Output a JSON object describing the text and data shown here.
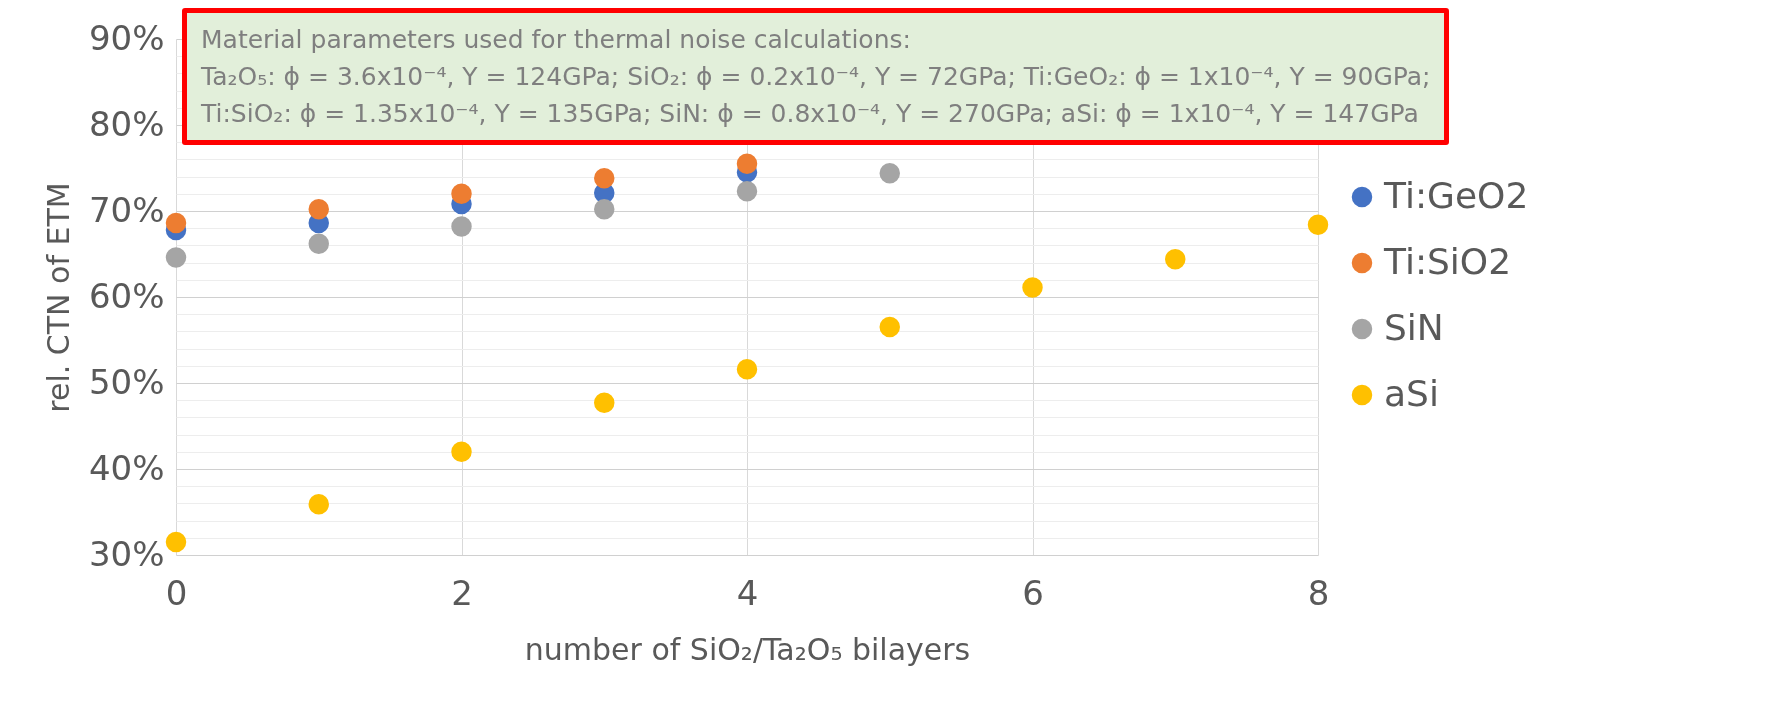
{
  "chart_data": {
    "type": "scatter",
    "xlabel": "number of SiO₂/Ta₂O₅ bilayers",
    "ylabel": "rel. CTN of ETM",
    "annotations": [
      "Material parameters used for thermal noise calculations:",
      "Ta₂O₅: ϕ = 3.6x10⁻⁴, Y = 124GPa; SiO₂: ϕ = 0.2x10⁻⁴, Y = 72GPa; Ti:GeO₂: ϕ = 1x10⁻⁴, Y = 90GPa;",
      "Ti:SiO₂: ϕ = 1.35x10⁻⁴, Y = 135GPa; SiN: ϕ = 0.8x10⁻⁴, Y = 270GPa; aSi: ϕ = 1x10⁻⁴, Y = 147GPa"
    ],
    "x": [
      0,
      1,
      2,
      3,
      4,
      5,
      6,
      7,
      8
    ],
    "series": [
      {
        "name": "Ti:GeO2",
        "color": "#4472c4",
        "values": [
          67.8,
          68.6,
          70.8,
          72.1,
          74.5,
          null,
          null,
          null,
          null
        ]
      },
      {
        "name": "Ti:SiO2",
        "color": "#ed7d31",
        "values": [
          68.6,
          70.2,
          72.0,
          73.8,
          75.5,
          null,
          null,
          null,
          null
        ]
      },
      {
        "name": "SiN",
        "color": "#a5a5a5",
        "values": [
          64.6,
          66.2,
          68.2,
          70.2,
          72.3,
          74.4,
          null,
          null,
          null
        ]
      },
      {
        "name": "aSi",
        "color": "#ffc000",
        "values": [
          31.5,
          35.9,
          42.0,
          47.7,
          51.6,
          56.5,
          61.1,
          64.4,
          68.4
        ]
      }
    ],
    "xlim": [
      0,
      8
    ],
    "xticks": [
      0,
      2,
      4,
      6,
      8
    ],
    "ylim": [
      30,
      90
    ],
    "yticks": [
      {
        "value": 30,
        "label": "30%"
      },
      {
        "value": 32,
        "label": null
      },
      {
        "value": 34,
        "label": null
      },
      {
        "value": 36,
        "label": null
      },
      {
        "value": 38,
        "label": null
      },
      {
        "value": 40,
        "label": "40%"
      },
      {
        "value": 42,
        "label": null
      },
      {
        "value": 44,
        "label": null
      },
      {
        "value": 46,
        "label": null
      },
      {
        "value": 48,
        "label": null
      },
      {
        "value": 50,
        "label": "50%"
      },
      {
        "value": 52,
        "label": null
      },
      {
        "value": 54,
        "label": null
      },
      {
        "value": 56,
        "label": null
      },
      {
        "value": 58,
        "label": null
      },
      {
        "value": 60,
        "label": "60%"
      },
      {
        "value": 62,
        "label": null
      },
      {
        "value": 64,
        "label": null
      },
      {
        "value": 66,
        "label": null
      },
      {
        "value": 68,
        "label": null
      },
      {
        "value": 70,
        "label": "70%"
      },
      {
        "value": 72,
        "label": null
      },
      {
        "value": 74,
        "label": null
      },
      {
        "value": 76,
        "label": null
      },
      {
        "value": 78,
        "label": null
      },
      {
        "value": 80,
        "label": "80%"
      },
      {
        "value": 82,
        "label": null
      },
      {
        "value": 84,
        "label": null
      },
      {
        "value": 86,
        "label": null
      },
      {
        "value": 88,
        "label": null
      },
      {
        "value": 90,
        "label": "90%"
      }
    ],
    "grid": true,
    "legend": "right",
    "marker": "circle"
  }
}
